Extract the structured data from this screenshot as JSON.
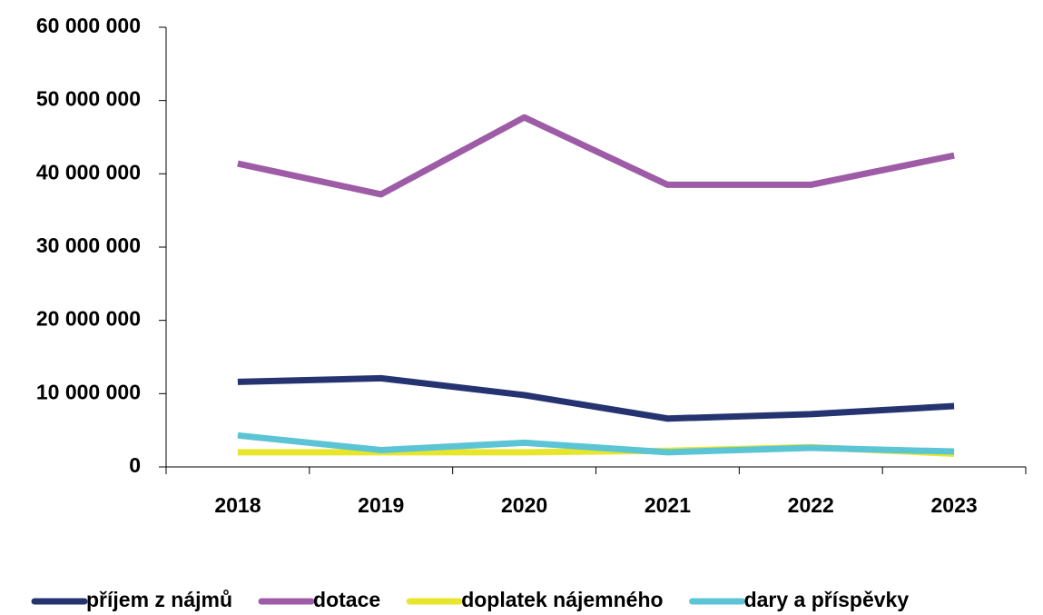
{
  "chart_data": {
    "type": "line",
    "categories": [
      "2018",
      "2019",
      "2020",
      "2021",
      "2022",
      "2023"
    ],
    "series": [
      {
        "name": "příjem z nájmů",
        "color": "#253471",
        "values": [
          11600000,
          12100000,
          9800000,
          6600000,
          7200000,
          8300000
        ]
      },
      {
        "name": "dotace",
        "color": "#9e5ba6",
        "values": [
          41400000,
          37200000,
          47700000,
          38500000,
          38500000,
          42500000
        ]
      },
      {
        "name": "doplatek nájemného",
        "color": "#e8e62a",
        "values": [
          2000000,
          2000000,
          2000000,
          2200000,
          2700000,
          1800000
        ]
      },
      {
        "name": "dary a příspěvky",
        "color": "#5bc5d6",
        "values": [
          4300000,
          2300000,
          3300000,
          2000000,
          2600000,
          2100000
        ]
      }
    ],
    "ylim": [
      0,
      60000000
    ],
    "yticks": [
      0,
      {
        "value": 10000000,
        "label": "10 000 000"
      },
      {
        "value": 20000000,
        "label": "20 000 000"
      },
      {
        "value": 30000000,
        "label": "30 000 000"
      },
      {
        "value": 40000000,
        "label": "40 000 000"
      },
      {
        "value": 50000000,
        "label": "50 000 000"
      },
      {
        "value": 60000000,
        "label": "60 000 000"
      }
    ],
    "grid": false,
    "legend": "bottom"
  }
}
